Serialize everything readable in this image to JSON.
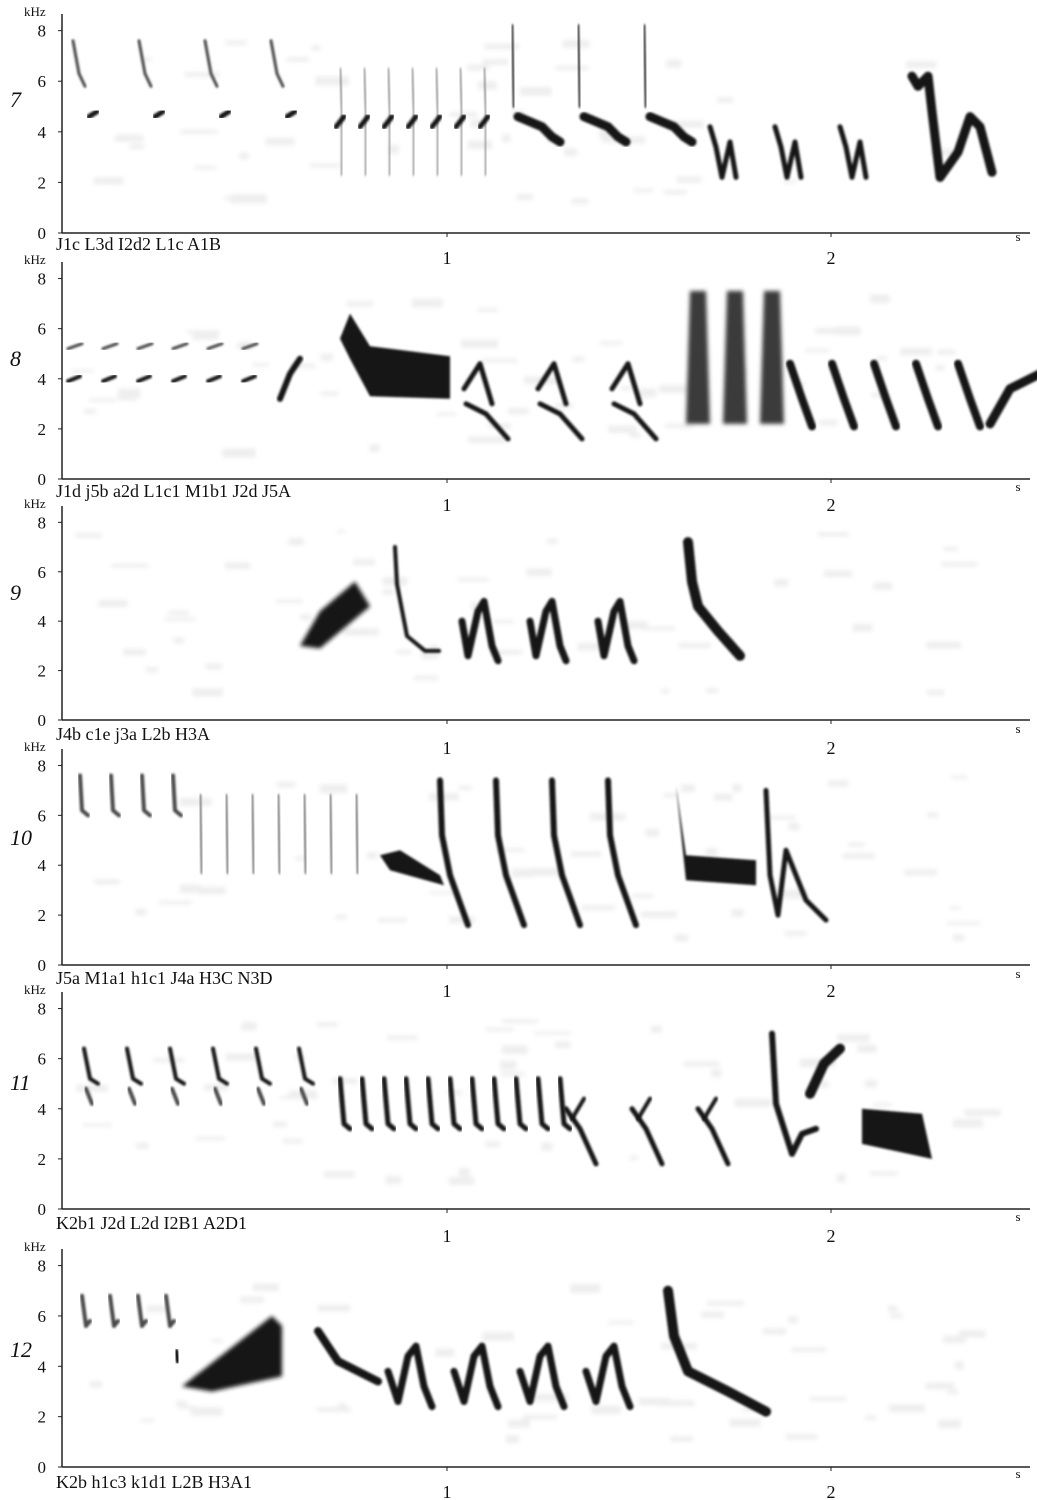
{
  "figure": {
    "frequency_unit": "kHz",
    "time_unit": "s",
    "frequency_ticks": [
      "0",
      "2",
      "4",
      "6",
      "8"
    ],
    "time_ticks": [
      "1",
      "2"
    ]
  },
  "panels": [
    {
      "number": "7",
      "caption": "J1c L3d I2d2 L1c A1B"
    },
    {
      "number": "8",
      "caption": "J1d j5b a2d L1c1 M1b1 J2d J5A"
    },
    {
      "number": "9",
      "caption": "J4b c1e j3a L2b H3A"
    },
    {
      "number": "10",
      "caption": "J5a M1a1 h1c1 J4a H3C N3D"
    },
    {
      "number": "11",
      "caption": "K2b1 J2d L2d I2B1 A2D1"
    },
    {
      "number": "12",
      "caption": "K2b h1c3 k1d1 L2B H3A1"
    }
  ]
}
